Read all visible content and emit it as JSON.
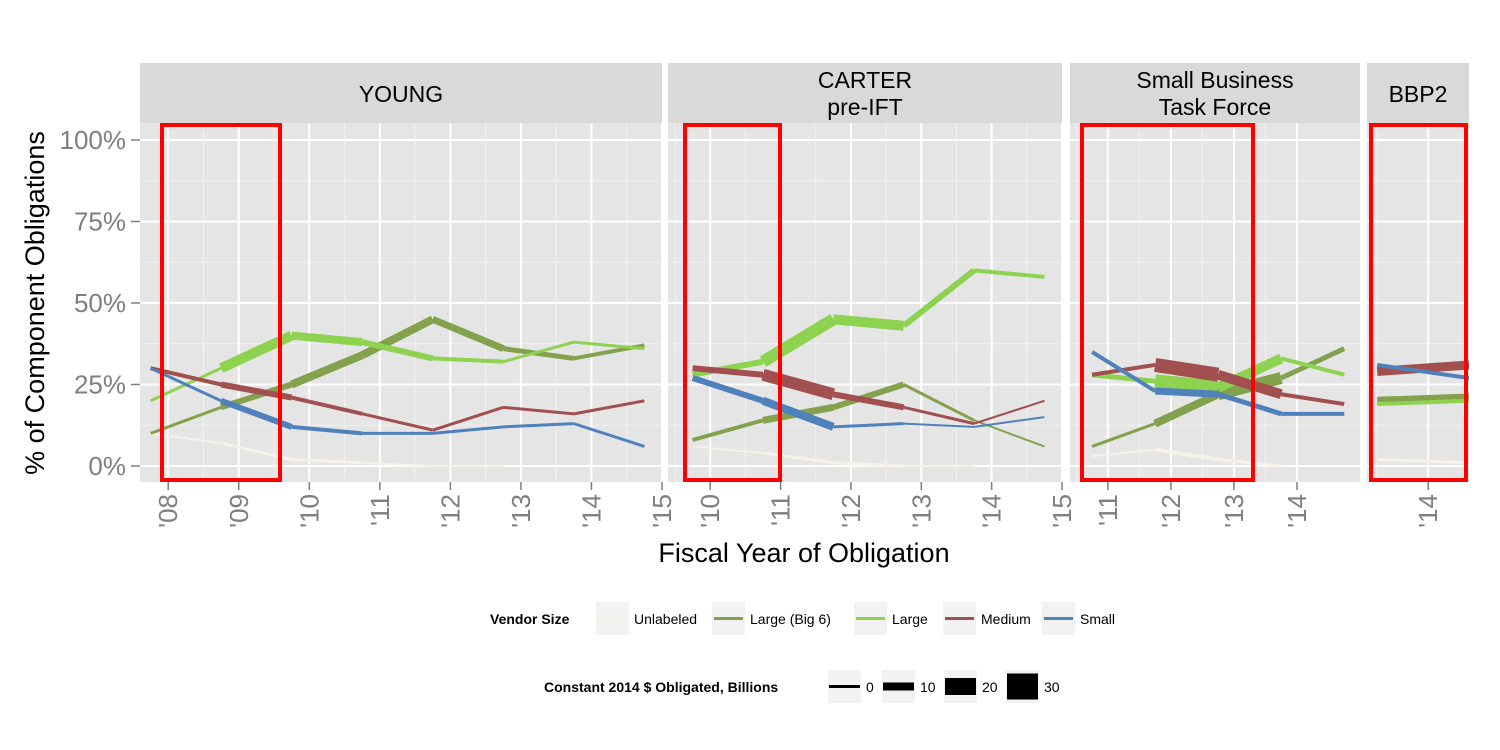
{
  "chart_data": {
    "type": "line",
    "xlabel": "Fiscal Year of Obligation",
    "ylabel": "% of Component Obligations",
    "yticks": [
      "0%",
      "25%",
      "50%",
      "75%",
      "100%"
    ],
    "ylim": [
      -0.05,
      1.05
    ],
    "grid": true,
    "panels": [
      {
        "title_lines": [
          "YOUNG"
        ],
        "xlim": [
          2007.6,
          2015.0
        ],
        "xticks": [
          "'08",
          "'09",
          "'10",
          "'11",
          "'12",
          "'13",
          "'14",
          "'15"
        ],
        "highlight": [
          2007.6,
          2009.3
        ],
        "series": {
          "Unlabeled": {
            "x": [
              2007.75,
              2008.75,
              2009.75,
              2010.75,
              2011.75,
              2012.75
            ],
            "y": [
              0.1,
              0.07,
              0.02,
              0.01,
              0.0,
              0.0
            ],
            "w": [
              2,
              3,
              3,
              2,
              2,
              1
            ]
          },
          "Large (Big 6)": {
            "x": [
              2007.75,
              2008.75,
              2009.75,
              2010.75,
              2011.75,
              2012.75,
              2013.75,
              2014.75
            ],
            "y": [
              0.1,
              0.18,
              0.25,
              0.34,
              0.45,
              0.36,
              0.33,
              0.37
            ],
            "w": [
              3,
              6,
              8,
              8,
              7,
              5,
              4,
              3
            ]
          },
          "Large": {
            "x": [
              2007.75,
              2008.75,
              2009.75,
              2010.75,
              2011.75,
              2012.75,
              2013.75,
              2014.75
            ],
            "y": [
              0.2,
              0.3,
              0.4,
              0.38,
              0.33,
              0.32,
              0.38,
              0.36
            ],
            "w": [
              3,
              10,
              8,
              6,
              4,
              3,
              3,
              3
            ]
          },
          "Medium": {
            "x": [
              2007.75,
              2008.75,
              2009.75,
              2010.75,
              2011.75,
              2012.75,
              2013.75,
              2014.75
            ],
            "y": [
              0.3,
              0.25,
              0.21,
              0.16,
              0.11,
              0.18,
              0.16,
              0.2
            ],
            "w": [
              4,
              6,
              4,
              3,
              3,
              3,
              3,
              2
            ]
          },
          "Small": {
            "x": [
              2007.75,
              2008.75,
              2009.75,
              2010.75,
              2011.75,
              2012.75,
              2013.75,
              2014.75
            ],
            "y": [
              0.3,
              0.2,
              0.12,
              0.1,
              0.1,
              0.12,
              0.13,
              0.06
            ],
            "w": [
              3,
              6,
              4,
              3,
              3,
              3,
              3,
              2
            ]
          }
        }
      },
      {
        "title_lines": [
          "CARTER",
          "pre-IFT"
        ],
        "xlim": [
          2009.4,
          2015.0
        ],
        "xticks": [
          "'10",
          "'11",
          "'12",
          "'13",
          "'14",
          "'15"
        ],
        "highlight": [
          2009.4,
          2010.7
        ],
        "series": {
          "Unlabeled": {
            "x": [
              2009.75,
              2010.75,
              2011.75,
              2012.75,
              2013.75
            ],
            "y": [
              0.06,
              0.04,
              0.01,
              0.0,
              0.0
            ],
            "w": [
              2,
              3,
              3,
              2,
              1
            ]
          },
          "Large (Big 6)": {
            "x": [
              2009.75,
              2010.75,
              2011.75,
              2012.75,
              2013.75,
              2014.75
            ],
            "y": [
              0.08,
              0.14,
              0.18,
              0.25,
              0.14,
              0.06
            ],
            "w": [
              4,
              7,
              6,
              3,
              2,
              2
            ]
          },
          "Large": {
            "x": [
              2009.75,
              2010.75,
              2011.75,
              2012.75,
              2013.75,
              2014.75
            ],
            "y": [
              0.28,
              0.32,
              0.45,
              0.43,
              0.6,
              0.58
            ],
            "w": [
              6,
              12,
              10,
              6,
              4,
              4
            ]
          },
          "Medium": {
            "x": [
              2009.75,
              2010.75,
              2011.75,
              2012.75,
              2013.75,
              2014.75
            ],
            "y": [
              0.3,
              0.28,
              0.22,
              0.18,
              0.13,
              0.2
            ],
            "w": [
              6,
              12,
              6,
              3,
              2,
              2
            ]
          },
          "Small": {
            "x": [
              2009.75,
              2010.75,
              2011.75,
              2012.75,
              2013.75,
              2014.75
            ],
            "y": [
              0.27,
              0.2,
              0.12,
              0.13,
              0.12,
              0.15
            ],
            "w": [
              6,
              8,
              3,
              2,
              2,
              2
            ]
          }
        }
      },
      {
        "title_lines": [
          "Small Business",
          "Task Force"
        ],
        "xlim": [
          2010.4,
          2015.0
        ],
        "xticks": [
          "'11",
          "'12",
          "'13",
          "'14"
        ],
        "highlight": [
          2010.4,
          2013.3
        ],
        "series": {
          "Unlabeled": {
            "x": [
              2010.75,
              2011.75,
              2012.75,
              2013.75
            ],
            "y": [
              0.03,
              0.05,
              0.02,
              0.0
            ],
            "w": [
              2,
              4,
              3,
              2
            ]
          },
          "Large (Big 6)": {
            "x": [
              2010.75,
              2011.75,
              2012.75,
              2013.75,
              2014.75
            ],
            "y": [
              0.06,
              0.13,
              0.22,
              0.27,
              0.36
            ],
            "w": [
              3,
              8,
              12,
              5,
              4
            ]
          },
          "Large": {
            "x": [
              2010.75,
              2011.75,
              2012.75,
              2013.75,
              2014.75
            ],
            "y": [
              0.28,
              0.26,
              0.24,
              0.33,
              0.28
            ],
            "w": [
              5,
              14,
              10,
              4,
              3
            ]
          },
          "Medium": {
            "x": [
              2010.75,
              2011.75,
              2012.75,
              2013.75,
              2014.75
            ],
            "y": [
              0.28,
              0.31,
              0.28,
              0.22,
              0.19
            ],
            "w": [
              4,
              14,
              10,
              4,
              3
            ]
          },
          "Small": {
            "x": [
              2010.75,
              2011.75,
              2012.75,
              2013.75,
              2014.75
            ],
            "y": [
              0.35,
              0.23,
              0.22,
              0.16,
              0.16
            ],
            "w": [
              4,
              7,
              5,
              4,
              4
            ]
          }
        }
      },
      {
        "title_lines": [
          "BBP2"
        ],
        "xlim": [
          2013.4,
          2014.4
        ],
        "xticks": [
          "'14"
        ],
        "highlight": [
          2013.4,
          2014.4
        ],
        "series": {
          "Unlabeled": {
            "x": [
              2013.5,
              2014.4
            ],
            "y": [
              0.02,
              0.01
            ],
            "w": [
              3,
              3
            ]
          },
          "Large (Big 6)": {
            "x": [
              2013.5,
              2014.4
            ],
            "y": [
              0.2,
              0.21
            ],
            "w": [
              8,
              8
            ]
          },
          "Large": {
            "x": [
              2013.5,
              2014.4
            ],
            "y": [
              0.19,
              0.2
            ],
            "w": [
              4,
              4
            ]
          },
          "Medium": {
            "x": [
              2013.5,
              2014.4
            ],
            "y": [
              0.29,
              0.31
            ],
            "w": [
              9,
              9
            ]
          },
          "Small": {
            "x": [
              2013.5,
              2014.4
            ],
            "y": [
              0.31,
              0.27
            ],
            "w": [
              4,
              4
            ]
          }
        }
      }
    ],
    "legend": {
      "color_title": "Vendor Size",
      "color_entries": [
        {
          "name": "Unlabeled",
          "color": "#F5F2E7"
        },
        {
          "name": "Large (Big 6)",
          "color": "#84A24D"
        },
        {
          "name": "Large",
          "color": "#8DD34F"
        },
        {
          "name": "Medium",
          "color": "#A14F4F"
        },
        {
          "name": "Small",
          "color": "#4F81BD"
        }
      ],
      "size_title": "Constant 2014 $ Obligated, Billions",
      "size_entries": [
        {
          "label": "0",
          "w": 3
        },
        {
          "label": "10",
          "w": 8
        },
        {
          "label": "20",
          "w": 17
        },
        {
          "label": "30",
          "w": 26
        }
      ]
    },
    "highlight_color": "#FF0000"
  }
}
